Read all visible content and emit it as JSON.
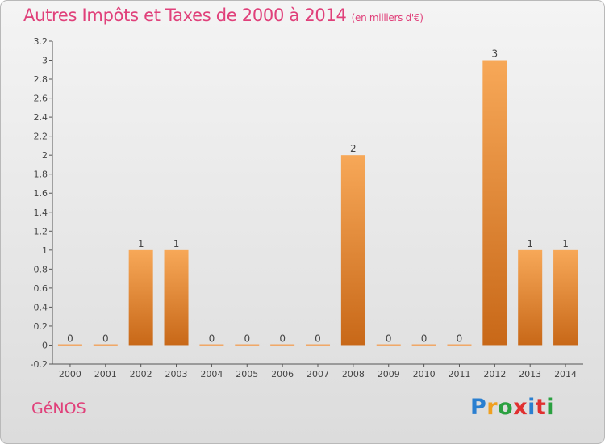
{
  "chart_data": {
    "type": "bar",
    "title": "Autres Impôts et Taxes de 2000 à 2014",
    "subtitle": "(en milliers d'€)",
    "categories": [
      "2000",
      "2001",
      "2002",
      "2003",
      "2004",
      "2005",
      "2006",
      "2007",
      "2008",
      "2009",
      "2010",
      "2011",
      "2012",
      "2013",
      "2014"
    ],
    "values": [
      0,
      0,
      1,
      1,
      0,
      0,
      0,
      0,
      2,
      0,
      0,
      0,
      3,
      1,
      1
    ],
    "data_labels": [
      "0",
      "0",
      "1",
      "1",
      "0",
      "0",
      "0",
      "0",
      "2",
      "0",
      "0",
      "0",
      "3",
      "1",
      "1"
    ],
    "y_ticks": [
      "-0.2",
      "0",
      "0.2",
      "0.4",
      "0.6",
      "0.8",
      "1",
      "1.2",
      "1.4",
      "1.6",
      "1.8",
      "2",
      "2.2",
      "2.4",
      "2.6",
      "2.8",
      "3",
      "3.2"
    ],
    "ylim": [
      -0.2,
      3.2
    ],
    "grid": false,
    "bar_color": "#f08a30"
  },
  "footer": {
    "commune": "GéNOS",
    "logo_letters": [
      "P",
      "r",
      "o",
      "x",
      "i",
      "t",
      "i"
    ],
    "logo_colors": [
      "#2a7fd0",
      "#f0a020",
      "#2aa040",
      "#e03030",
      "#2a7fd0",
      "#e03030",
      "#2aa040"
    ]
  }
}
